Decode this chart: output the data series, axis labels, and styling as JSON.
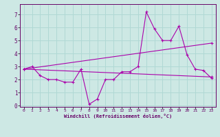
{
  "xlabel": "Windchill (Refroidissement éolien,°C)",
  "background_color": "#cde8e4",
  "grid_color": "#b0d8d4",
  "line_color": "#aa00aa",
  "spine_color": "#660066",
  "xlim": [
    -0.5,
    23.5
  ],
  "ylim": [
    -0.1,
    7.8
  ],
  "xticks": [
    0,
    1,
    2,
    3,
    4,
    5,
    6,
    7,
    8,
    9,
    10,
    11,
    12,
    13,
    14,
    15,
    16,
    17,
    18,
    19,
    20,
    21,
    22,
    23
  ],
  "yticks": [
    0,
    1,
    2,
    3,
    4,
    5,
    6,
    7
  ],
  "series1_x": [
    0,
    1,
    2,
    3,
    4,
    5,
    6,
    7,
    8,
    9,
    10,
    11,
    12,
    13,
    14,
    15,
    16,
    17,
    18,
    19,
    20,
    21,
    22,
    23
  ],
  "series1_y": [
    2.8,
    3.0,
    2.3,
    2.0,
    2.0,
    1.8,
    1.8,
    2.8,
    0.1,
    0.5,
    2.0,
    2.0,
    2.6,
    2.6,
    3.0,
    7.2,
    5.9,
    5.0,
    5.0,
    6.1,
    3.9,
    2.8,
    2.7,
    2.1
  ],
  "series2_x": [
    0,
    23
  ],
  "series2_y": [
    2.8,
    4.8
  ],
  "series3_x": [
    0,
    23
  ],
  "series3_y": [
    2.8,
    2.2
  ]
}
